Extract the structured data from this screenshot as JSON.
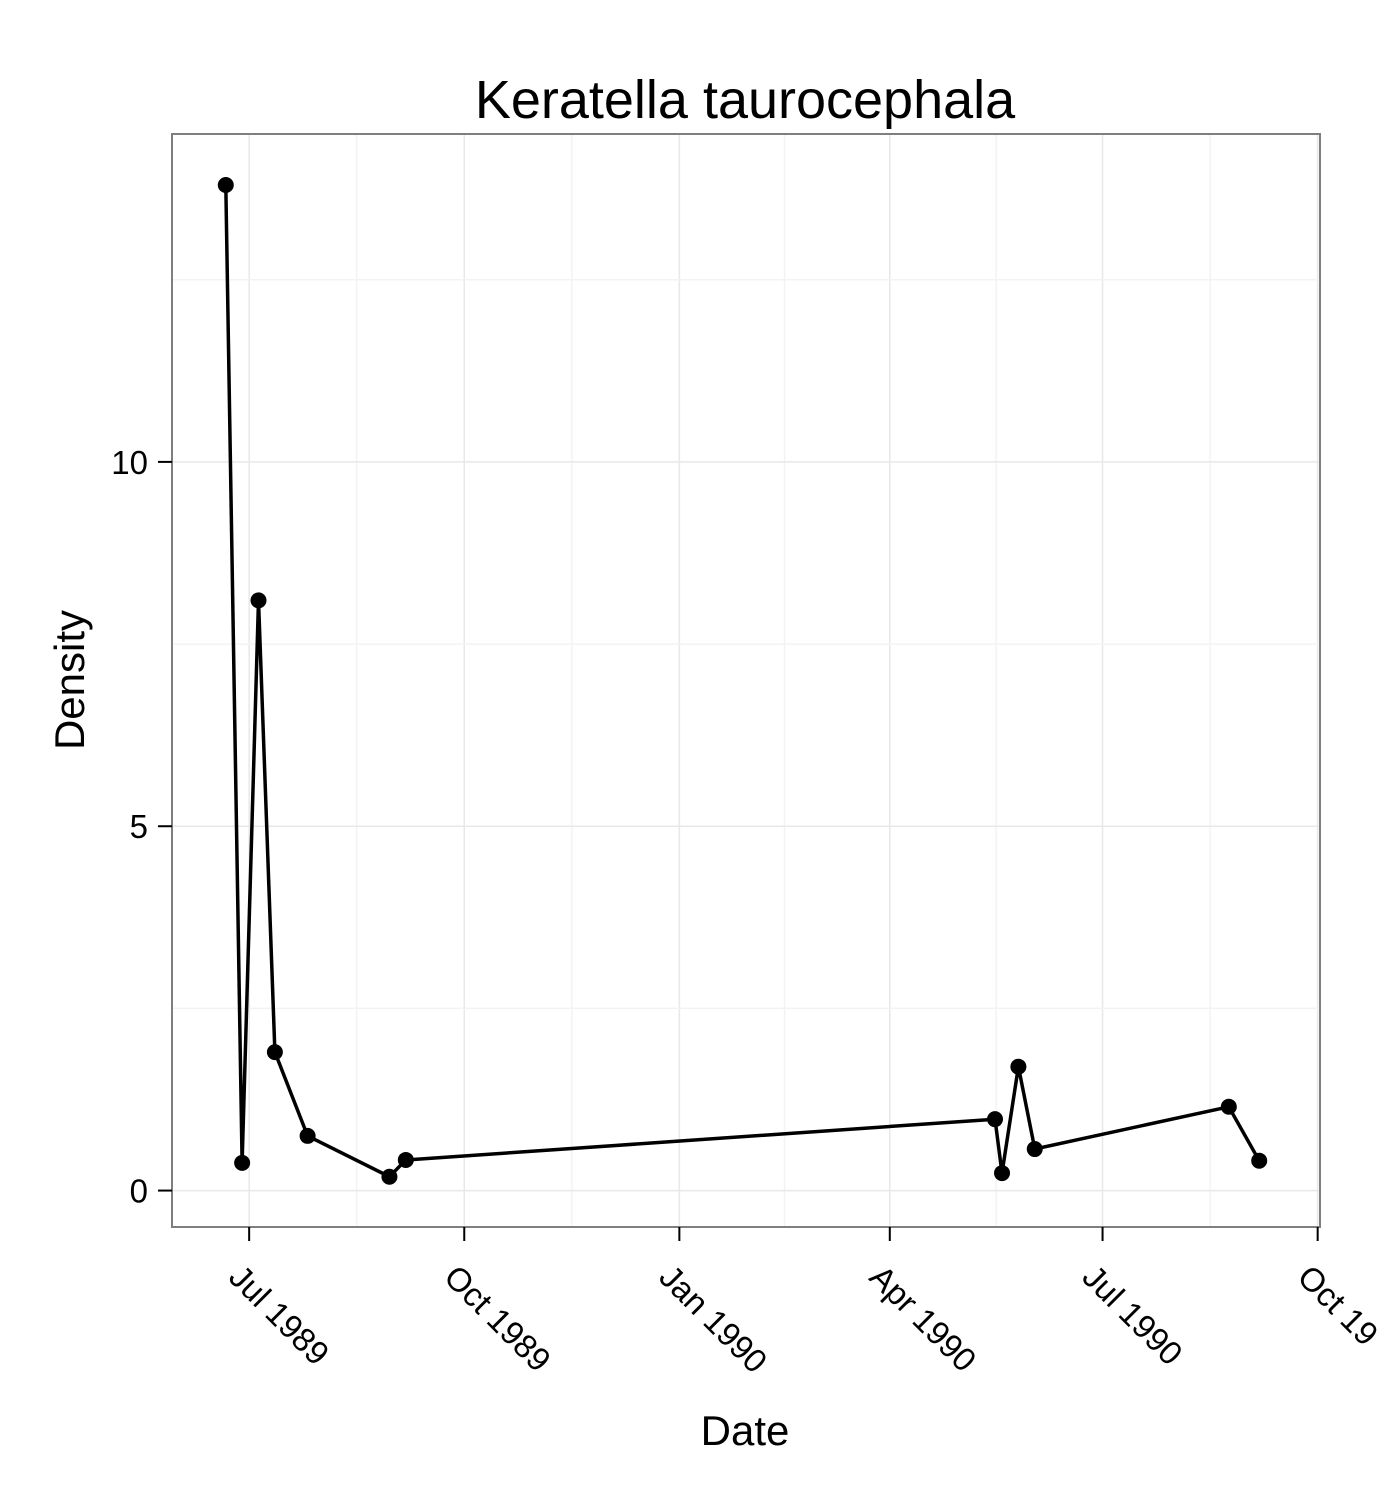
{
  "chart_data": {
    "type": "line",
    "title": "Keratella taurocephala",
    "xlabel": "Date",
    "ylabel": "Density",
    "x_tick_labels": [
      {
        "date": "1989-07-01",
        "label": "Jul 1989"
      },
      {
        "date": "1989-10-01",
        "label": "Oct 1989"
      },
      {
        "date": "1990-01-01",
        "label": "Jan 1990"
      },
      {
        "date": "1990-04-01",
        "label": "Apr 1990"
      },
      {
        "date": "1990-07-01",
        "label": "Jul 1990"
      },
      {
        "date": "1990-10-01",
        "label": "Oct 19"
      }
    ],
    "y_ticks": [
      0,
      5,
      10
    ],
    "y_tick_labels": [
      "0",
      "5",
      "10"
    ],
    "xlim": [
      "1989-05-29",
      "1990-10-02"
    ],
    "ylim": [
      -0.5,
      14.5
    ],
    "grid": true,
    "points": [
      {
        "x": "1989-06-21",
        "y": 13.8
      },
      {
        "x": "1989-06-28",
        "y": 0.38
      },
      {
        "x": "1989-07-05",
        "y": 8.1
      },
      {
        "x": "1989-07-12",
        "y": 1.9
      },
      {
        "x": "1989-07-26",
        "y": 0.75
      },
      {
        "x": "1989-08-30",
        "y": 0.19
      },
      {
        "x": "1989-09-06",
        "y": 0.42
      },
      {
        "x": "1990-05-16",
        "y": 0.98
      },
      {
        "x": "1990-05-19",
        "y": 0.24
      },
      {
        "x": "1990-05-26",
        "y": 1.7
      },
      {
        "x": "1990-06-02",
        "y": 0.57
      },
      {
        "x": "1990-08-24",
        "y": 1.15
      },
      {
        "x": "1990-09-06",
        "y": 0.41
      }
    ]
  }
}
